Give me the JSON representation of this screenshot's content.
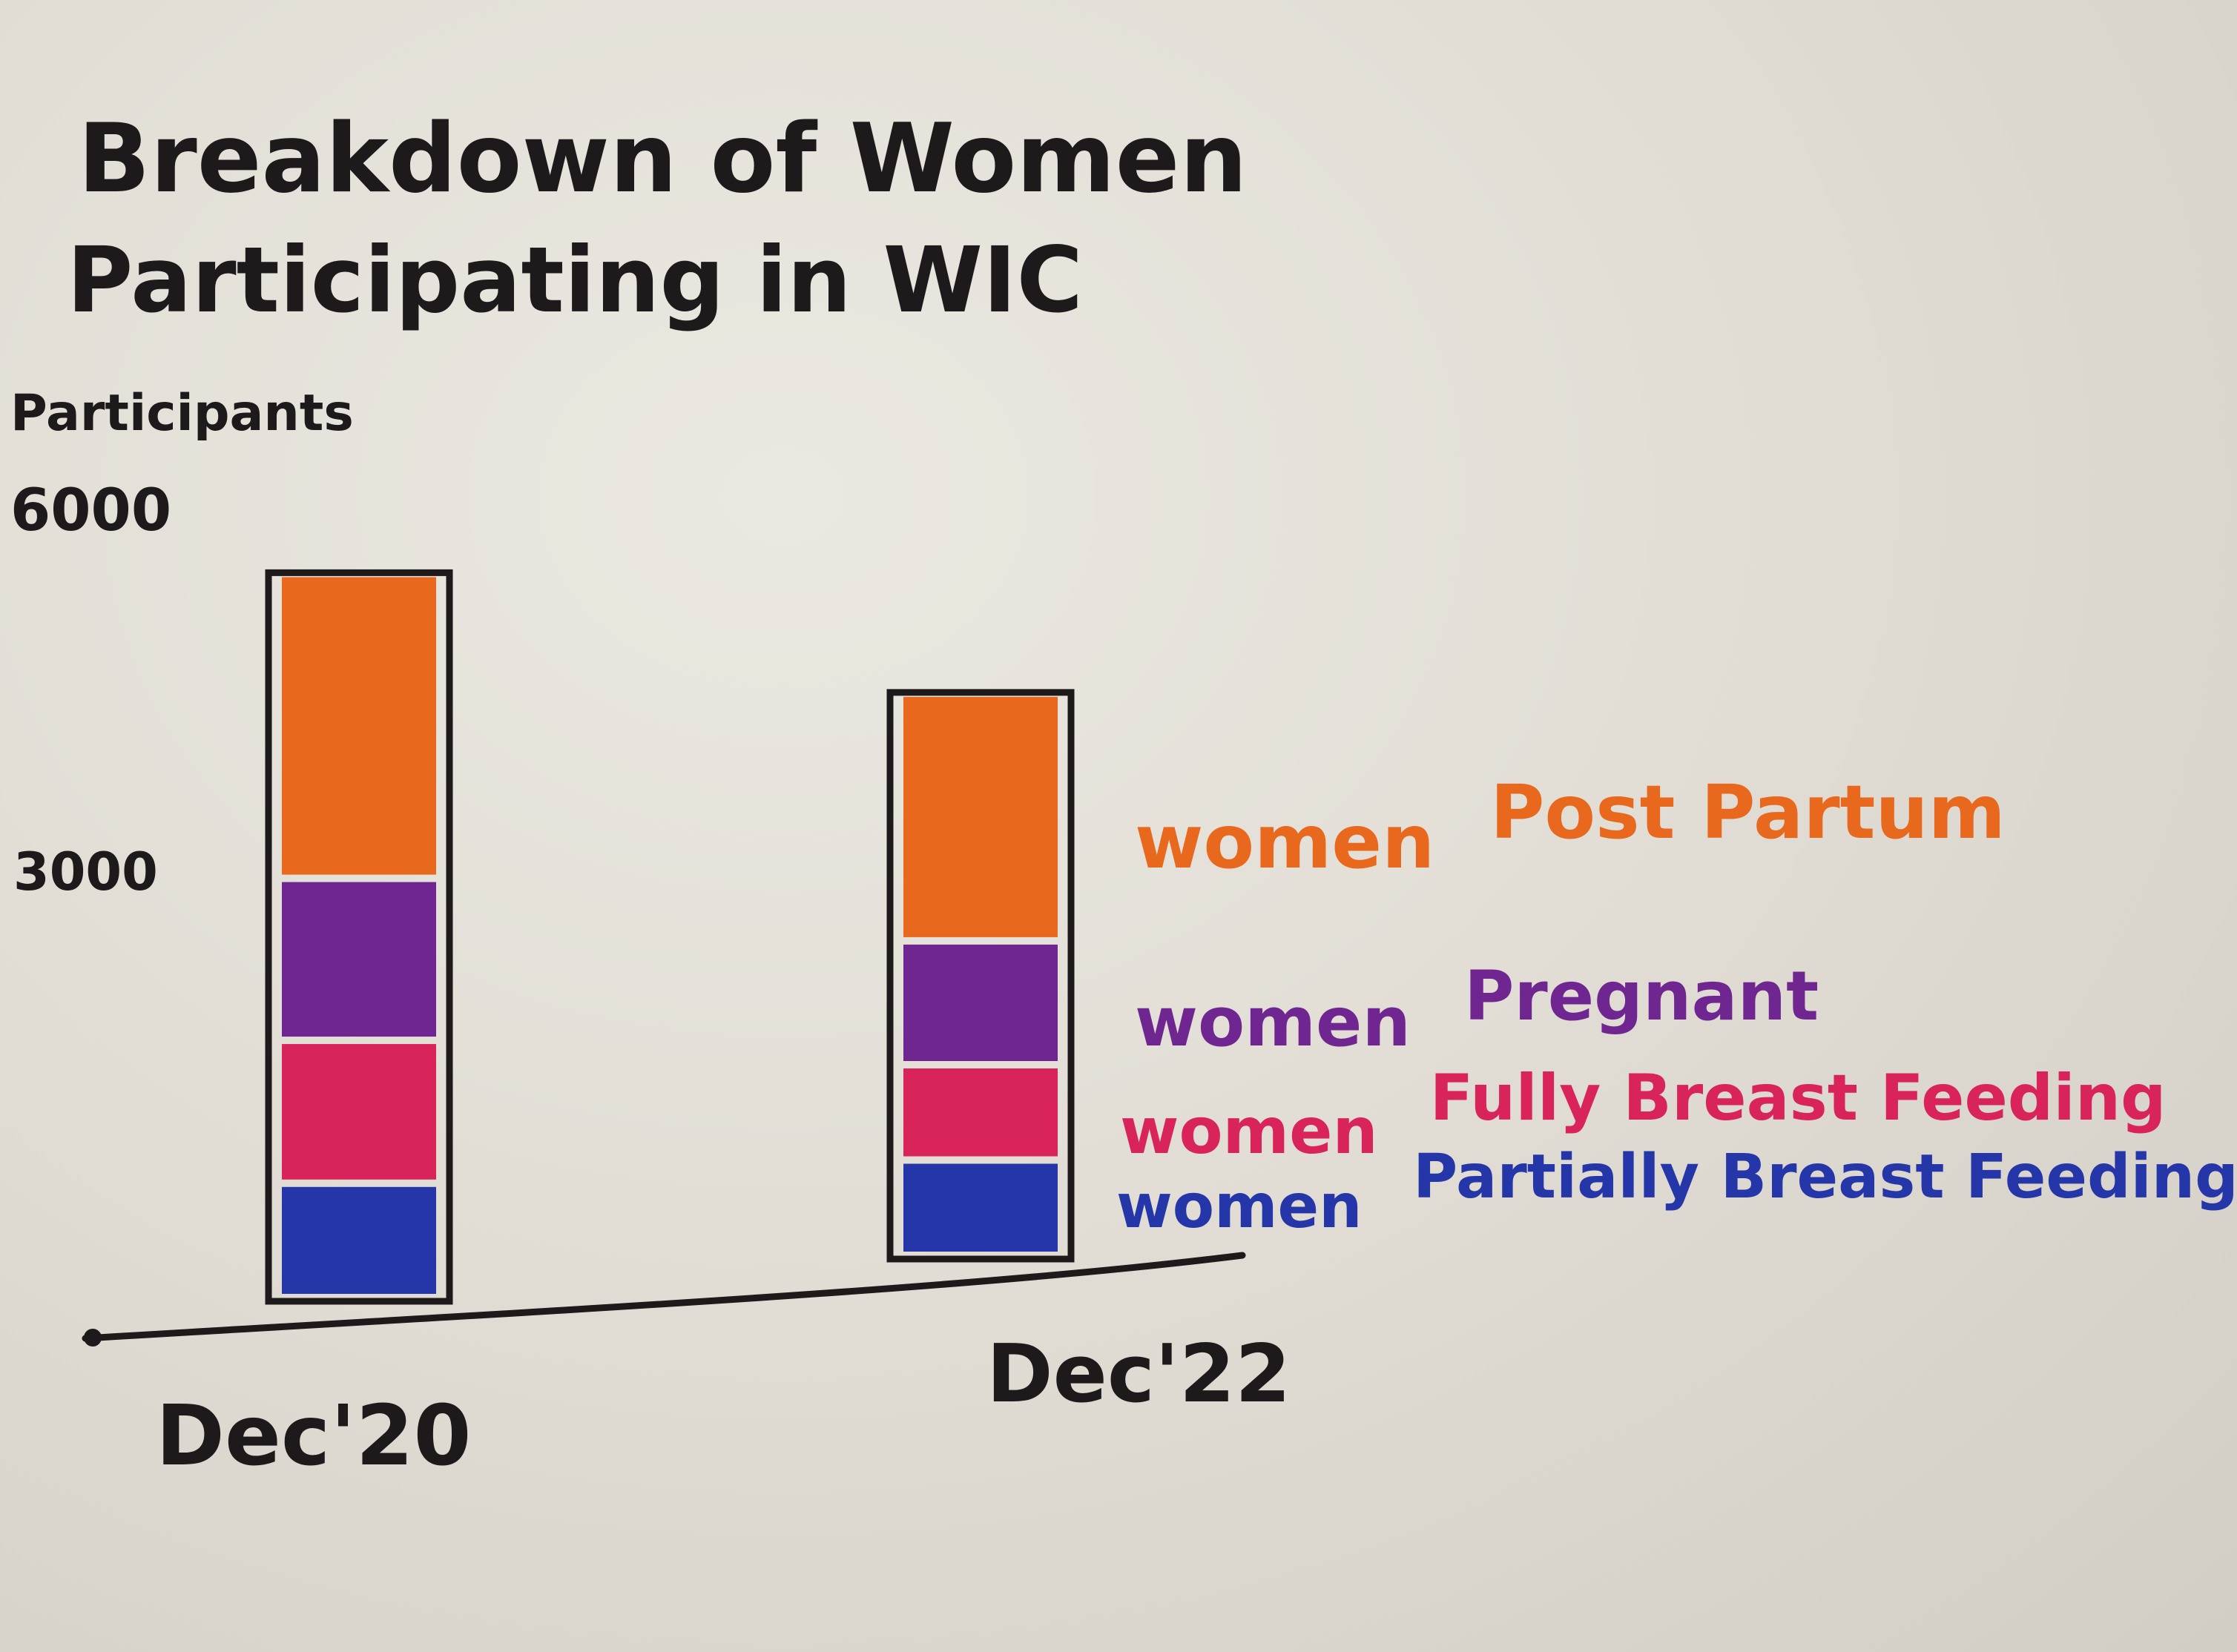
{
  "chart_data": {
    "type": "bar",
    "stacked": true,
    "title": "Breakdown of Women Participating in WIC",
    "title_lines": [
      "Breakdown of Women",
      "Participating in WIC"
    ],
    "ylabel": "Participants",
    "yticks": [
      "3000",
      "6000"
    ],
    "ylim": [
      0,
      6000
    ],
    "categories": [
      "Dec'20",
      "Dec'22"
    ],
    "series": [
      {
        "name": "Women Partially Breast Feeding",
        "label_prefix": "women",
        "label_rest": "Partially Breast Feeding",
        "color": "#2436a8",
        "values": [
          600,
          500
        ]
      },
      {
        "name": "Women Fully Breast Feeding",
        "label_prefix": "women",
        "label_rest": "Fully Breast Feeding",
        "color": "#d8245a",
        "values": [
          750,
          500
        ]
      },
      {
        "name": "Women Pregnant",
        "label_prefix": "women",
        "label_rest": "Pregnant",
        "color": "#6f2691",
        "values": [
          850,
          650
        ]
      },
      {
        "name": "Women Post Partum",
        "label_prefix": "women",
        "label_rest": "Post Partum",
        "color": "#e8681e",
        "values": [
          1600,
          1300
        ]
      }
    ],
    "legend_position": "right"
  }
}
